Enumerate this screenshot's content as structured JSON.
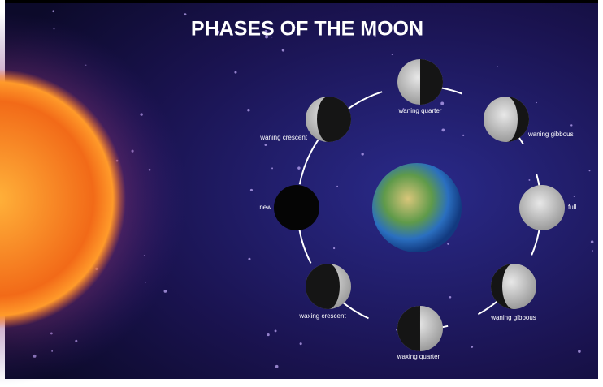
{
  "title": "PHASES OF THE MOON",
  "nodes": [
    {
      "label": "waning quarter"
    },
    {
      "label": "waning gibbous"
    },
    {
      "label": "full"
    },
    {
      "label": "waning gibbous"
    },
    {
      "label": "waxing quarter"
    },
    {
      "label": "waxing crescent"
    },
    {
      "label": "new"
    },
    {
      "label": "waning crescent"
    }
  ]
}
